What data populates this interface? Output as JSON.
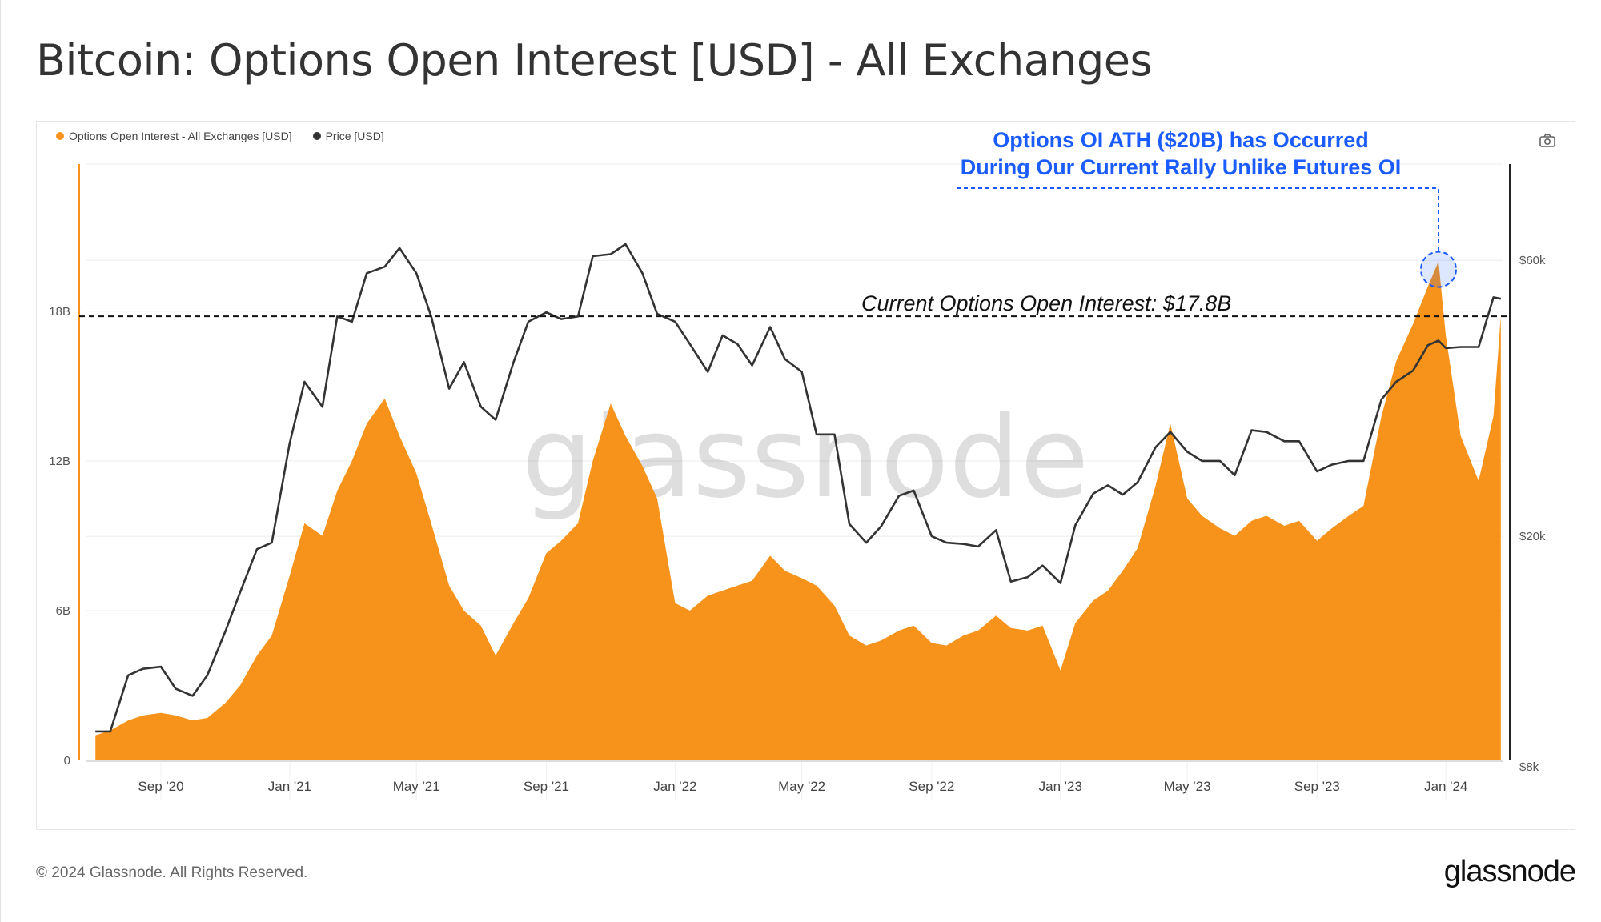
{
  "title": "Bitcoin: Options Open Interest [USD] - All Exchanges",
  "legend": [
    {
      "label": "Options Open Interest - All Exchanges [USD]",
      "color": "#F7931A"
    },
    {
      "label": "Price [USD]",
      "color": "#333333"
    }
  ],
  "toolbar": {
    "camera_icon": "camera-icon"
  },
  "annotation": {
    "line1": "Options OI ATH ($20B) has Occurred",
    "line2": "During Our Current Rally Unlike Futures OI",
    "color": "#1a5cff",
    "ath_value": 20,
    "ath_date": "2023-12-25"
  },
  "current_label": "Current Options Open Interest: $17.8B",
  "watermark": "glassnode",
  "footer": {
    "copyright": "© 2024 Glassnode. All Rights Reserved.",
    "logo": "glassnode"
  },
  "chart_data": {
    "type": "area",
    "title": "Bitcoin: Options Open Interest [USD] - All Exchanges",
    "x_ticks": [
      "Sep '20",
      "Jan '21",
      "May '21",
      "Sep '21",
      "Jan '22",
      "May '22",
      "Sep '22",
      "Jan '23",
      "May '23",
      "Sep '23",
      "Jan '24"
    ],
    "x_tick_dates": [
      "2020-09-01",
      "2021-01-01",
      "2021-05-01",
      "2021-09-01",
      "2022-01-01",
      "2022-05-01",
      "2022-09-01",
      "2023-01-01",
      "2023-05-01",
      "2023-09-01",
      "2024-01-01"
    ],
    "y_left": {
      "ticks": [
        "0",
        "6B",
        "12B",
        "18B"
      ],
      "tick_values": [
        0,
        6,
        12,
        18
      ],
      "unit": "B USD",
      "range": [
        0,
        23.9
      ]
    },
    "y_right": {
      "ticks": [
        "$8k",
        "$20k",
        "$60k"
      ],
      "tick_values": [
        8000,
        20000,
        60000
      ],
      "scale": "log",
      "range": [
        8200,
        88000
      ]
    },
    "reference_line": {
      "value": 17.8,
      "style": "dashed"
    },
    "grid": true,
    "legend_position": "top-left",
    "x": [
      "2020-07-01",
      "2020-07-15",
      "2020-08-01",
      "2020-08-15",
      "2020-09-01",
      "2020-09-15",
      "2020-10-01",
      "2020-10-15",
      "2020-11-01",
      "2020-11-15",
      "2020-12-01",
      "2020-12-15",
      "2021-01-01",
      "2021-01-15",
      "2021-02-01",
      "2021-02-15",
      "2021-03-01",
      "2021-03-15",
      "2021-04-01",
      "2021-04-15",
      "2021-05-01",
      "2021-05-15",
      "2021-06-01",
      "2021-06-15",
      "2021-07-01",
      "2021-07-15",
      "2021-08-01",
      "2021-08-15",
      "2021-09-01",
      "2021-09-15",
      "2021-10-01",
      "2021-10-15",
      "2021-11-01",
      "2021-11-15",
      "2021-12-01",
      "2021-12-15",
      "2022-01-01",
      "2022-01-15",
      "2022-02-01",
      "2022-02-15",
      "2022-03-01",
      "2022-03-15",
      "2022-04-01",
      "2022-04-15",
      "2022-05-01",
      "2022-05-15",
      "2022-06-01",
      "2022-06-15",
      "2022-07-01",
      "2022-07-15",
      "2022-08-01",
      "2022-08-15",
      "2022-09-01",
      "2022-09-15",
      "2022-10-01",
      "2022-10-15",
      "2022-11-01",
      "2022-11-15",
      "2022-12-01",
      "2022-12-15",
      "2023-01-01",
      "2023-01-15",
      "2023-02-01",
      "2023-02-15",
      "2023-03-01",
      "2023-03-15",
      "2023-04-01",
      "2023-04-15",
      "2023-05-01",
      "2023-05-15",
      "2023-06-01",
      "2023-06-15",
      "2023-07-01",
      "2023-07-15",
      "2023-08-01",
      "2023-08-15",
      "2023-09-01",
      "2023-09-15",
      "2023-10-01",
      "2023-10-15",
      "2023-11-01",
      "2023-11-15",
      "2023-12-01",
      "2023-12-15",
      "2023-12-25",
      "2024-01-01",
      "2024-01-15",
      "2024-02-01",
      "2024-02-15",
      "2024-02-22"
    ],
    "series": [
      {
        "name": "Options Open Interest - All Exchanges [USD]",
        "axis": "left",
        "color": "#F7931A",
        "values": [
          1.0,
          1.2,
          1.6,
          1.8,
          1.9,
          1.8,
          1.6,
          1.7,
          2.3,
          3.0,
          4.2,
          5.0,
          7.4,
          9.5,
          9.0,
          10.8,
          12.0,
          13.5,
          14.5,
          13.0,
          11.5,
          9.5,
          7.0,
          6.0,
          5.4,
          4.2,
          5.5,
          6.5,
          8.3,
          8.8,
          9.5,
          12.0,
          14.3,
          13.0,
          11.8,
          10.5,
          6.3,
          6.0,
          6.6,
          6.8,
          7.0,
          7.2,
          8.2,
          7.6,
          7.3,
          7.0,
          6.2,
          5.0,
          4.6,
          4.8,
          5.2,
          5.4,
          4.7,
          4.6,
          5.0,
          5.2,
          5.8,
          5.3,
          5.2,
          5.4,
          3.6,
          5.5,
          6.4,
          6.8,
          7.6,
          8.5,
          11.0,
          13.5,
          10.5,
          9.8,
          9.3,
          9.0,
          9.6,
          9.8,
          9.4,
          9.6,
          8.8,
          9.3,
          9.8,
          10.2,
          13.8,
          16.0,
          17.5,
          19.0,
          20.0,
          17.0,
          13.0,
          11.2,
          13.8,
          17.8
        ]
      },
      {
        "name": "Price [USD]",
        "axis": "right",
        "color": "#333333",
        "values": [
          9200,
          9200,
          11500,
          11800,
          11900,
          10900,
          10600,
          11500,
          13700,
          16000,
          19000,
          19500,
          29000,
          37000,
          33500,
          48000,
          47000,
          57000,
          58500,
          63000,
          57000,
          48000,
          36000,
          40000,
          33500,
          31800,
          40000,
          47000,
          48800,
          47500,
          48000,
          61000,
          61500,
          64000,
          57000,
          48500,
          47000,
          43000,
          38500,
          44500,
          43000,
          39500,
          46000,
          40500,
          38500,
          30000,
          30000,
          21000,
          19500,
          20800,
          23500,
          24000,
          20000,
          19500,
          19400,
          19200,
          20500,
          16700,
          17000,
          17800,
          16600,
          20900,
          23700,
          24500,
          23600,
          24800,
          28500,
          30300,
          28000,
          27000,
          27000,
          25500,
          30500,
          30300,
          29200,
          29200,
          25900,
          26600,
          27000,
          27000,
          34500,
          37000,
          38700,
          42800,
          43600,
          42300,
          42500,
          42500,
          51800,
          51500
        ]
      }
    ]
  }
}
